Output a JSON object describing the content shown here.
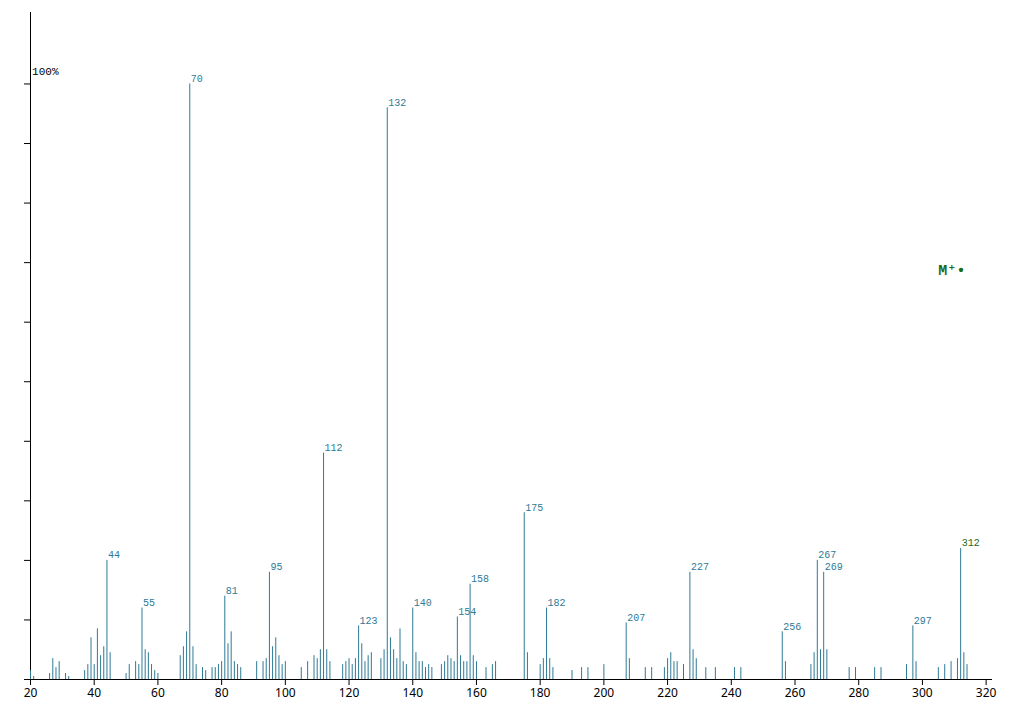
{
  "chart_data": {
    "type": "bar",
    "x": [
      20,
      21,
      26,
      27,
      28,
      29,
      31,
      32,
      37,
      38,
      39,
      40,
      41,
      42,
      43,
      44,
      45,
      50,
      51,
      53,
      54,
      55,
      56,
      57,
      58,
      59,
      60,
      67,
      68,
      69,
      70,
      71,
      72,
      74,
      75,
      77,
      78,
      79,
      80,
      81,
      82,
      83,
      84,
      85,
      86,
      91,
      93,
      94,
      95,
      96,
      97,
      98,
      99,
      100,
      105,
      107,
      109,
      110,
      111,
      112,
      113,
      114,
      118,
      119,
      120,
      121,
      122,
      123,
      124,
      125,
      126,
      127,
      130,
      131,
      132,
      133,
      134,
      135,
      136,
      137,
      138,
      140,
      141,
      142,
      143,
      144,
      145,
      146,
      149,
      150,
      151,
      152,
      153,
      154,
      155,
      156,
      157,
      158,
      159,
      160,
      163,
      165,
      166,
      175,
      176,
      180,
      181,
      182,
      183,
      184,
      190,
      193,
      195,
      200,
      207,
      208,
      213,
      215,
      219,
      220,
      221,
      222,
      223,
      225,
      227,
      228,
      229,
      232,
      235,
      241,
      243,
      256,
      257,
      265,
      266,
      267,
      268,
      269,
      270,
      277,
      279,
      285,
      287,
      295,
      297,
      298,
      305,
      307,
      309,
      311,
      312,
      313,
      314
    ],
    "values": [
      1.5,
      0.5,
      1.0,
      3.5,
      2.0,
      3.0,
      1.0,
      0.5,
      1.5,
      2.5,
      7.0,
      2.5,
      8.5,
      4.0,
      5.5,
      20.0,
      4.5,
      1.0,
      2.5,
      3.0,
      2.5,
      12.0,
      5.0,
      4.5,
      2.5,
      1.5,
      1.0,
      4.0,
      5.5,
      8.0,
      100.0,
      5.5,
      2.5,
      2.0,
      1.5,
      2.0,
      2.0,
      2.5,
      3.0,
      14.0,
      6.0,
      8.0,
      3.0,
      2.5,
      2.0,
      3.0,
      3.0,
      3.5,
      18.0,
      5.5,
      7.0,
      4.0,
      2.5,
      3.0,
      2.0,
      3.0,
      4.0,
      3.5,
      5.0,
      38.0,
      5.0,
      3.0,
      2.5,
      3.0,
      3.5,
      2.5,
      3.5,
      9.0,
      6.0,
      3.0,
      4.0,
      4.5,
      3.5,
      5.0,
      96.0,
      7.0,
      5.0,
      3.5,
      8.5,
      3.0,
      2.5,
      12.0,
      4.5,
      3.0,
      3.0,
      2.0,
      2.5,
      2.0,
      2.5,
      3.0,
      4.0,
      3.5,
      3.0,
      10.5,
      4.0,
      3.0,
      3.0,
      16.0,
      4.0,
      3.0,
      2.0,
      2.5,
      3.0,
      28.0,
      4.5,
      2.5,
      3.5,
      12.0,
      3.5,
      2.0,
      1.5,
      2.0,
      2.0,
      2.5,
      9.5,
      3.5,
      2.0,
      2.0,
      2.0,
      3.5,
      4.5,
      3.0,
      3.0,
      2.5,
      18.0,
      5.0,
      3.5,
      2.0,
      2.0,
      2.0,
      2.0,
      8.0,
      3.0,
      2.5,
      4.5,
      20.0,
      5.0,
      18.0,
      5.0,
      2.0,
      2.0,
      2.0,
      2.0,
      2.5,
      9.0,
      3.0,
      2.0,
      2.5,
      3.0,
      3.5,
      22.0,
      4.5,
      2.5
    ],
    "color": "#2e7a96",
    "xlim": [
      20,
      322
    ],
    "xticks": [
      20,
      40,
      60,
      80,
      100,
      120,
      140,
      160,
      180,
      200,
      220,
      240,
      260,
      280,
      300,
      320
    ],
    "ylim": [
      0,
      112
    ],
    "yticks": [
      0,
      10,
      20,
      30,
      40,
      50,
      60,
      70,
      80,
      90,
      100
    ],
    "tick_labels": "x",
    "grid": false,
    "peak_labels": {
      "x": [
        44,
        55,
        70,
        81,
        95,
        112,
        123,
        132,
        140,
        154,
        158,
        175,
        182,
        207,
        227,
        256,
        267,
        269,
        297,
        312
      ],
      "color": "#2e7a96",
      "highlight": 312,
      "highlight_color": "#1a6b1a"
    },
    "annotations": [
      {
        "text": "100%",
        "x": 20.5,
        "y": 101.5,
        "color": "#000000"
      },
      {
        "text": "M⁺•",
        "x": 305,
        "y": 68,
        "color": "#1a6b1a",
        "bold": true
      }
    ]
  }
}
